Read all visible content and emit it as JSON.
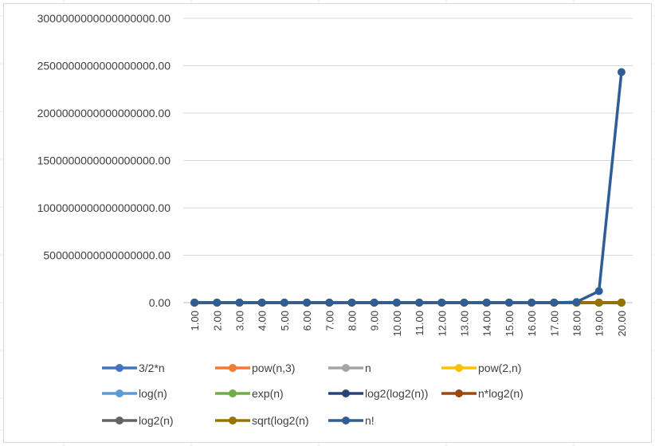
{
  "chart_data": {
    "type": "line",
    "title": "",
    "xlabel": "",
    "ylabel": "",
    "ylim": [
      0,
      3000000000000000000
    ],
    "y_ticks": [
      {
        "value": 0,
        "label": "0.00"
      },
      {
        "value": 500000000000000000,
        "label": "500000000000000000.00"
      },
      {
        "value": 1000000000000000000,
        "label": "1000000000000000000.00"
      },
      {
        "value": 1500000000000000000,
        "label": "1500000000000000000.00"
      },
      {
        "value": 2000000000000000000,
        "label": "2000000000000000000.00"
      },
      {
        "value": 2500000000000000000,
        "label": "2500000000000000000.00"
      },
      {
        "value": 3000000000000000000,
        "label": "3000000000000000000.00"
      }
    ],
    "categories": [
      "1.00",
      "2.00",
      "3.00",
      "4.00",
      "5.00",
      "6.00",
      "7.00",
      "8.00",
      "9.00",
      "10.00",
      "11.00",
      "12.00",
      "13.00",
      "14.00",
      "15.00",
      "16.00",
      "17.00",
      "18.00",
      "19.00",
      "20.00"
    ],
    "grid": true,
    "legend_position": "bottom",
    "series": [
      {
        "name": "3/2*n",
        "color": "#4472c4",
        "values": [
          1.5,
          3,
          4.5,
          6,
          7.5,
          9,
          10.5,
          12,
          13.5,
          15,
          16.5,
          18,
          19.5,
          21,
          22.5,
          24,
          25.5,
          27,
          28.5,
          30
        ]
      },
      {
        "name": "pow(n,3)",
        "color": "#ed7d31",
        "values": [
          1,
          8,
          27,
          64,
          125,
          216,
          343,
          512,
          729,
          1000,
          1331,
          1728,
          2197,
          2744,
          3375,
          4096,
          4913,
          5832,
          6859,
          8000
        ]
      },
      {
        "name": "n",
        "color": "#a5a5a5",
        "values": [
          1,
          2,
          3,
          4,
          5,
          6,
          7,
          8,
          9,
          10,
          11,
          12,
          13,
          14,
          15,
          16,
          17,
          18,
          19,
          20
        ]
      },
      {
        "name": "pow(2,n)",
        "color": "#ffc000",
        "values": [
          2,
          4,
          8,
          16,
          32,
          64,
          128,
          256,
          512,
          1024,
          2048,
          4096,
          8192,
          16384,
          32768,
          65536,
          131072,
          262144,
          524288,
          1048576
        ]
      },
      {
        "name": "log(n)",
        "color": "#5b9bd5",
        "values": [
          0,
          0.69,
          1.1,
          1.39,
          1.61,
          1.79,
          1.95,
          2.08,
          2.2,
          2.3,
          2.4,
          2.48,
          2.56,
          2.64,
          2.71,
          2.77,
          2.83,
          2.89,
          2.94,
          3
        ]
      },
      {
        "name": "exp(n)",
        "color": "#70ad47",
        "values": [
          2.72,
          7.39,
          20.09,
          54.6,
          148.4,
          403.4,
          1096.6,
          2981,
          8103,
          22026,
          59874,
          162755,
          442413,
          1202604,
          3269017,
          8886111,
          24154953,
          65659969,
          178482301,
          485165195
        ]
      },
      {
        "name": "log2(log2(n))",
        "color": "#264478",
        "values": [
          0,
          0,
          0.66,
          1,
          1.22,
          1.37,
          1.49,
          1.58,
          1.66,
          1.73,
          1.79,
          1.84,
          1.89,
          1.93,
          1.97,
          2,
          2.03,
          2.06,
          2.09,
          2.11
        ]
      },
      {
        "name": "n*log2(n)",
        "color": "#9e480e",
        "values": [
          0,
          2,
          4.75,
          8,
          11.61,
          15.51,
          19.65,
          24,
          28.53,
          33.22,
          38.05,
          43.02,
          48.11,
          53.3,
          58.6,
          64,
          69.49,
          75.06,
          80.71,
          86.44
        ]
      },
      {
        "name": "log2(n)",
        "color": "#636363",
        "values": [
          0,
          1,
          1.58,
          2,
          2.32,
          2.58,
          2.81,
          3,
          3.17,
          3.32,
          3.46,
          3.58,
          3.7,
          3.81,
          3.91,
          4,
          4.09,
          4.17,
          4.25,
          4.32
        ]
      },
      {
        "name": "sqrt(log2(n)",
        "color": "#997300",
        "values": [
          0,
          1,
          1.26,
          1.41,
          1.52,
          1.61,
          1.68,
          1.73,
          1.78,
          1.82,
          1.86,
          1.89,
          1.92,
          1.95,
          1.98,
          2,
          2.02,
          2.04,
          2.06,
          2.08
        ]
      },
      {
        "name": "n!",
        "color": "#2e5e95",
        "values": [
          1,
          2,
          6,
          24,
          120,
          720,
          5040,
          40320,
          362880,
          3628800,
          39916800,
          479001600,
          6227020800,
          87178291200,
          1307674368000,
          20922789888000,
          355687428096000,
          6402373705728000,
          121645100408832000,
          2432902008176640000
        ]
      }
    ]
  }
}
